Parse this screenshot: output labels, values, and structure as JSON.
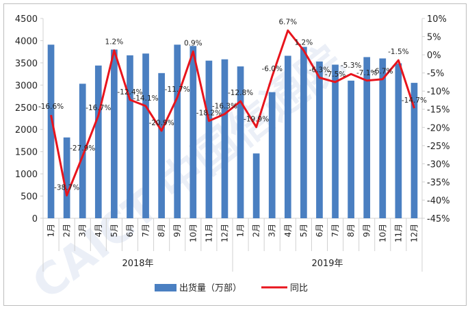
{
  "chart_data": {
    "type": "bar",
    "title": "",
    "xlabel": "",
    "ylabel": "",
    "categories": [
      "1月",
      "2月",
      "3月",
      "4月",
      "5月",
      "6月",
      "7月",
      "8月",
      "9月",
      "10月",
      "11月",
      "12月",
      "1月",
      "2月",
      "3月",
      "4月",
      "5月",
      "6月",
      "7月",
      "8月",
      "9月",
      "10月",
      "11月",
      "12月"
    ],
    "groups": [
      {
        "label": "2018年",
        "count": 12
      },
      {
        "label": "2019年",
        "count": 12
      }
    ],
    "ylim": [
      0,
      4500
    ],
    "yticks": [
      "0",
      "500",
      "1000",
      "1500",
      "2000",
      "2500",
      "3000",
      "3500",
      "4000",
      "4500"
    ],
    "y2lim": [
      -45,
      10
    ],
    "y2ticks": [
      "10%",
      "5%",
      "0%",
      "-5%",
      "-10%",
      "-15%",
      "-20%",
      "-25%",
      "-30%",
      "-35%",
      "-40%",
      "-45%"
    ],
    "series": [
      {
        "name": "出货量（万部）",
        "kind": "bar",
        "color": "#4a7fc1",
        "values": [
          3910,
          1820,
          3030,
          3440,
          3800,
          3670,
          3710,
          3270,
          3910,
          3880,
          3550,
          3580,
          3420,
          1460,
          2840,
          3660,
          3860,
          3530,
          3460,
          3100,
          3630,
          3600,
          3490,
          3050
        ]
      },
      {
        "name": "同比",
        "kind": "line",
        "axis": "right",
        "color": "#e8141c",
        "values": [
          -16.6,
          -38.7,
          -27.9,
          -16.7,
          1.2,
          -12.4,
          -14.1,
          -20.9,
          -11.7,
          0.9,
          -18.2,
          -16.3,
          -12.8,
          -19.9,
          -6.0,
          6.7,
          1.2,
          -6.3,
          -7.5,
          -5.3,
          -7.1,
          -6.7,
          -1.5,
          -14.7
        ],
        "labels": [
          "-16.6%",
          "-38.7%",
          "-27.9%",
          "-16.7%",
          "1.2%",
          "-12.4%",
          "-14.1%",
          "-20.9%",
          "-11.7%",
          "0.9%",
          "-18.2%",
          "-16.3%",
          "-12.8%",
          "-19.9%",
          "-6.0%",
          "6.7%",
          "1.2%",
          "-6.3%",
          "-7.5%",
          "-5.3%",
          "-7.1%",
          "-6.7%",
          "-1.5%",
          "-14.7%"
        ]
      }
    ],
    "legend_position": "bottom",
    "watermark": "CAICT 中国信通院"
  }
}
